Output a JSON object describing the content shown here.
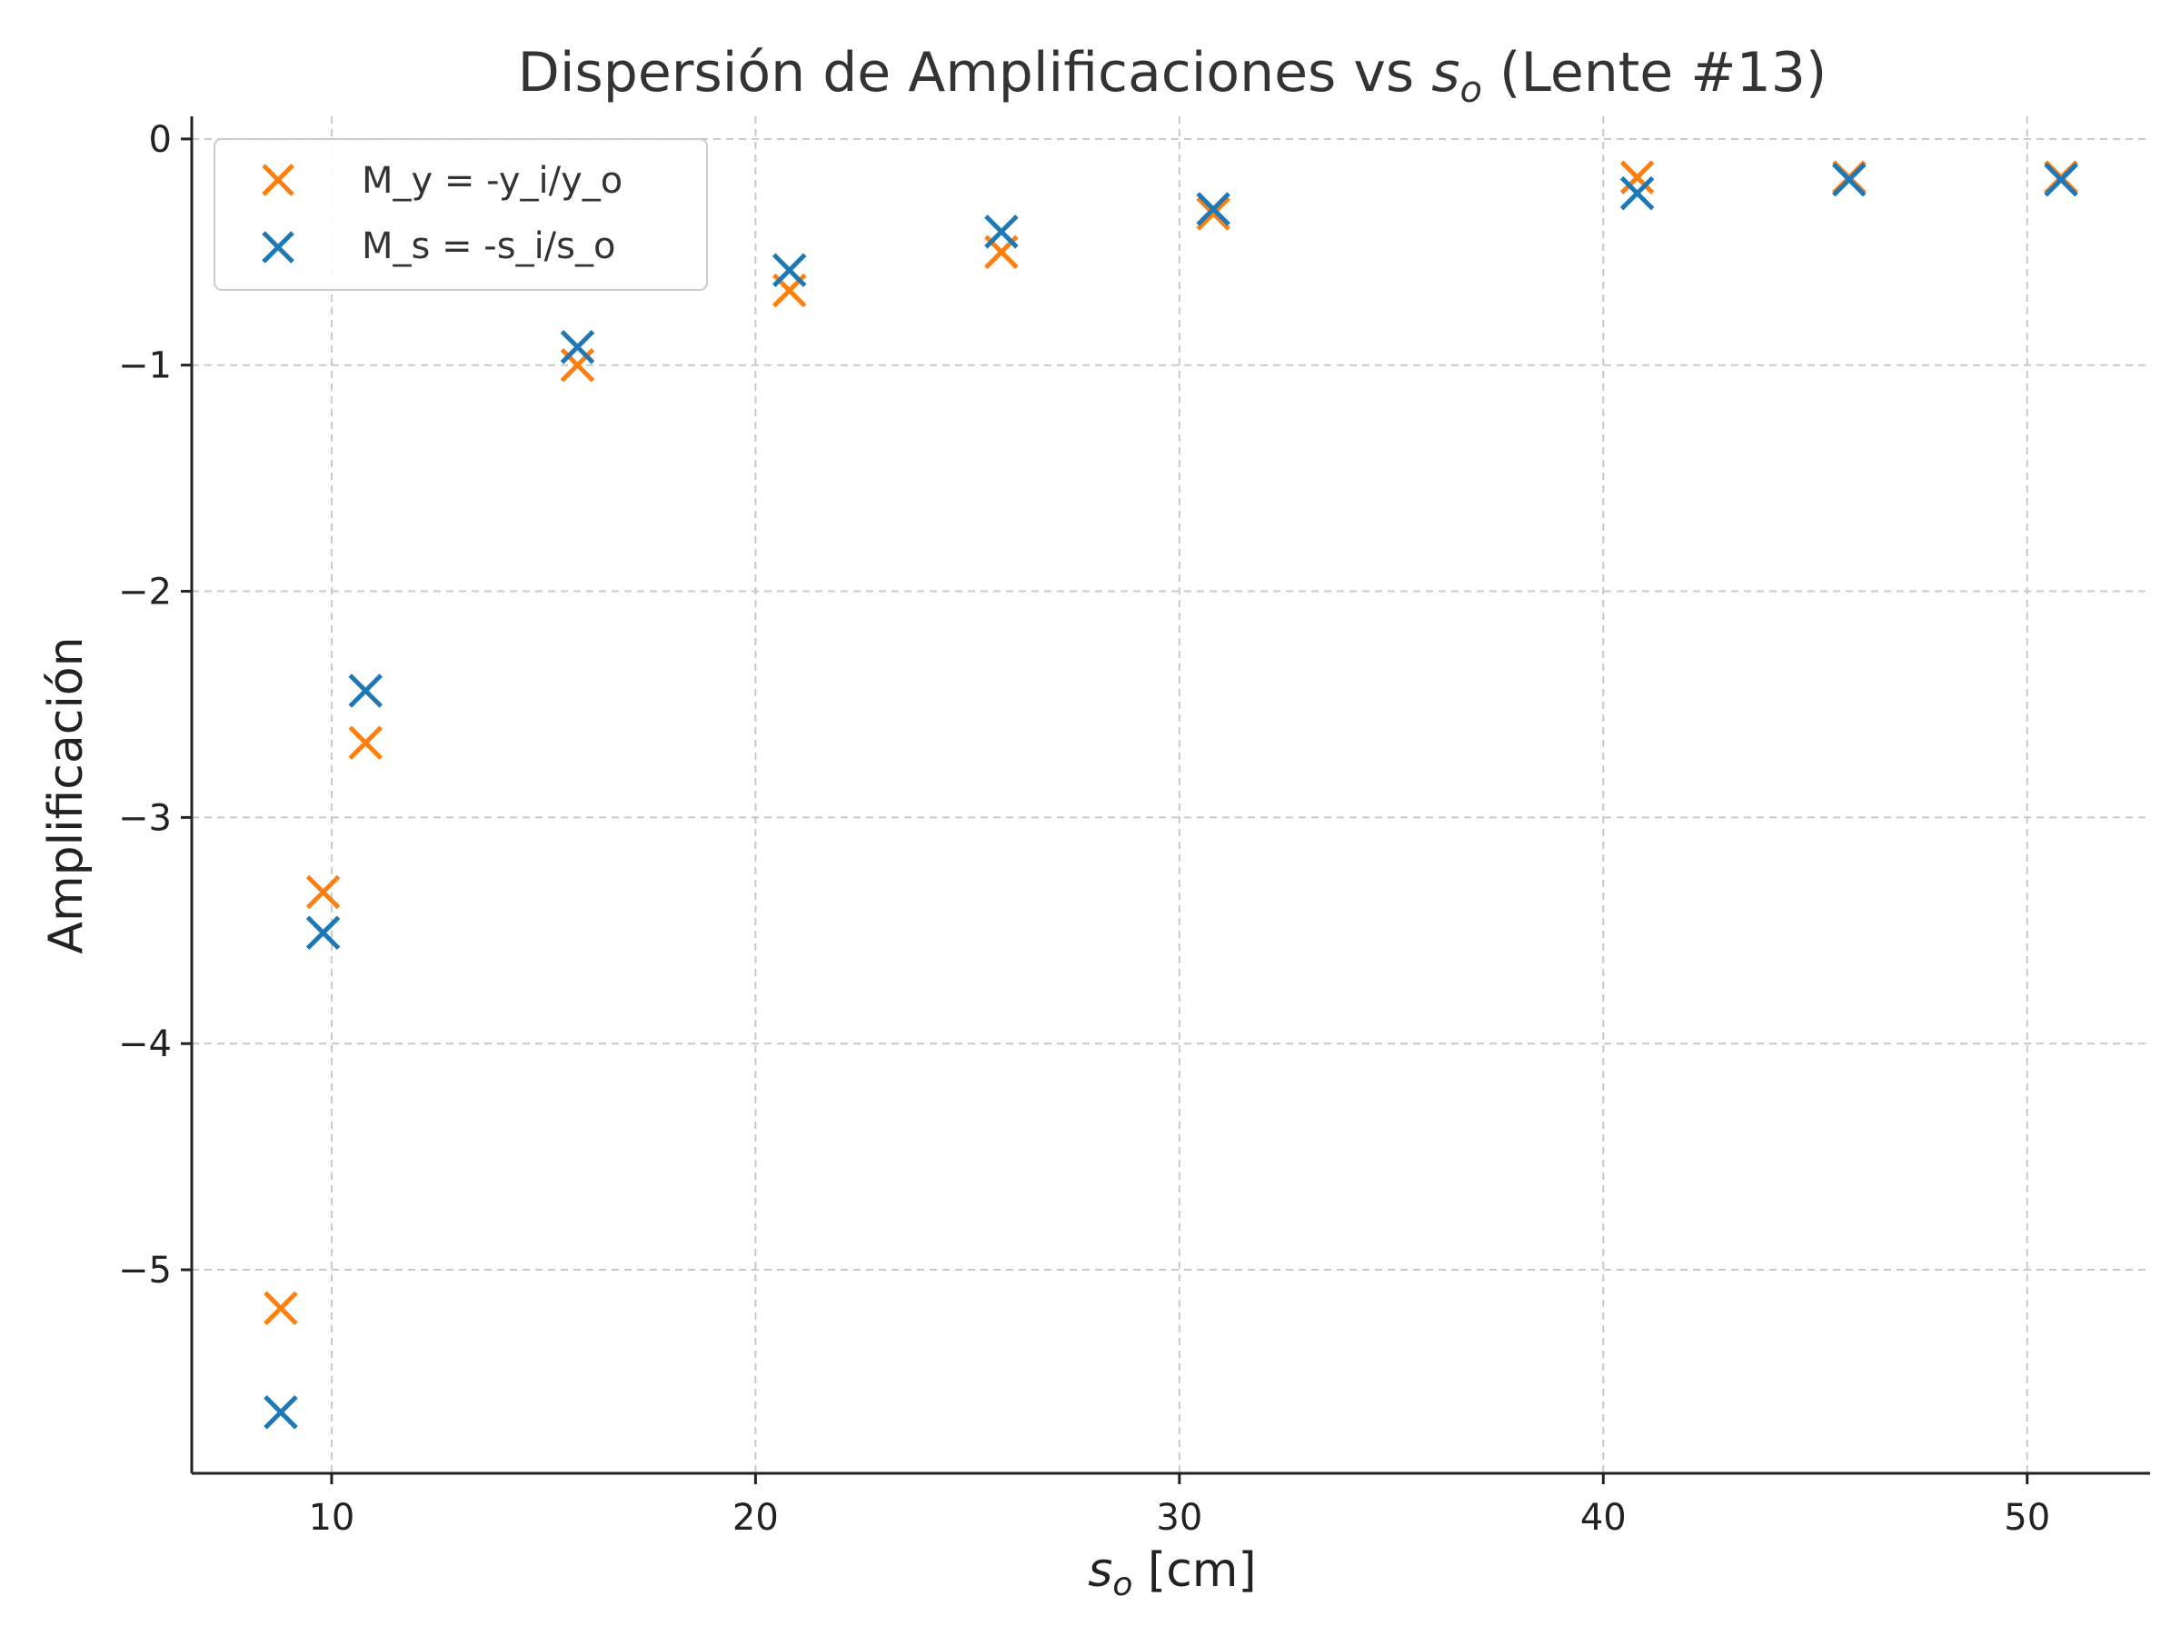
{
  "chart_data": {
    "type": "scatter",
    "title": "Dispersión de Amplificaciones vs s_o (Lente #13)",
    "title_parts": {
      "before": "Dispersión de Amplificaciones vs ",
      "var_main": "s",
      "var_sub": "o",
      "after": " (Lente #13)"
    },
    "xlabel": "s_o [cm]",
    "xlabel_parts": {
      "var_main": "s",
      "var_sub": "o",
      "after": " [cm]"
    },
    "ylabel": "Amplificación",
    "xlim": [
      6.7,
      52.9
    ],
    "ylim": [
      -5.9,
      0.1
    ],
    "xticks": [
      10,
      20,
      30,
      40,
      50
    ],
    "yticks": [
      0,
      -1,
      -2,
      -3,
      -4,
      -5
    ],
    "xtick_labels": [
      "10",
      "20",
      "30",
      "40",
      "50"
    ],
    "ytick_labels": [
      "0",
      "−1",
      "−2",
      "−3",
      "−4",
      "−5"
    ],
    "grid": true,
    "legend_position": "upper-left",
    "marker": "x",
    "series": [
      {
        "name": "M_y = -y_i/y_o",
        "color": "#ff7f0e",
        "x": [
          8.8,
          9.8,
          10.8,
          15.8,
          20.8,
          25.8,
          30.8,
          40.8,
          45.8,
          50.8
        ],
        "y": [
          -5.17,
          -3.33,
          -2.67,
          -1.0,
          -0.67,
          -0.5,
          -0.33,
          -0.17,
          -0.17,
          -0.17
        ]
      },
      {
        "name": "M_s = -s_i/s_o",
        "color": "#1f77b4",
        "x": [
          8.8,
          9.8,
          10.8,
          15.8,
          20.8,
          25.8,
          30.8,
          40.8,
          45.8,
          50.8
        ],
        "y": [
          -5.63,
          -3.51,
          -2.44,
          -0.92,
          -0.58,
          -0.41,
          -0.31,
          -0.24,
          -0.18,
          -0.18
        ]
      }
    ]
  }
}
